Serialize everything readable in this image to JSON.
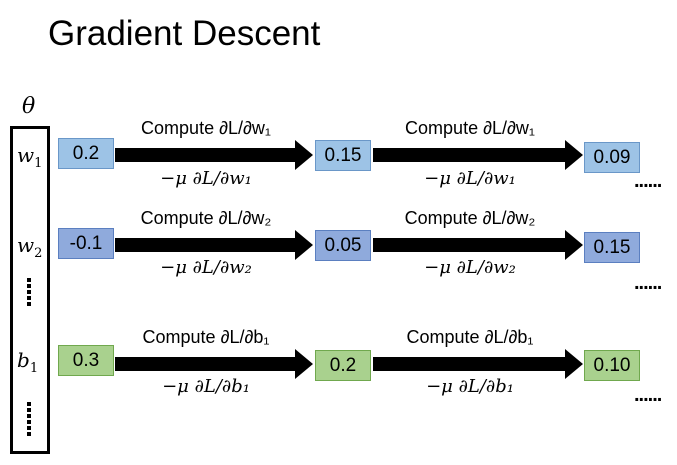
{
  "title": "Gradient Descent",
  "theta": "θ",
  "column": {
    "symbols": [
      {
        "name": "w",
        "sub": "1"
      },
      {
        "name": "w",
        "sub": "2"
      },
      {
        "name": "b",
        "sub": "1"
      }
    ]
  },
  "continuation": "......",
  "rows": [
    {
      "id": "w1",
      "color": "#9dc3e6",
      "border": "#6a97c8",
      "values": [
        "0.2",
        "0.15",
        "0.09"
      ],
      "compute": "Compute ∂L/∂w₁",
      "update": "−μ ∂L/∂w₁"
    },
    {
      "id": "w2",
      "color": "#8faadc",
      "border": "#5b7fc0",
      "values": [
        "-0.1",
        "0.05",
        "0.15"
      ],
      "compute": "Compute ∂L/∂w₂",
      "update": "−μ ∂L/∂w₂"
    },
    {
      "id": "b1",
      "color": "#a9d18e",
      "border": "#70a84e",
      "values": [
        "0.3",
        "0.2",
        "0.10"
      ],
      "compute": "Compute ∂L/∂b₁",
      "update": "−μ ∂L/∂b₁"
    }
  ]
}
